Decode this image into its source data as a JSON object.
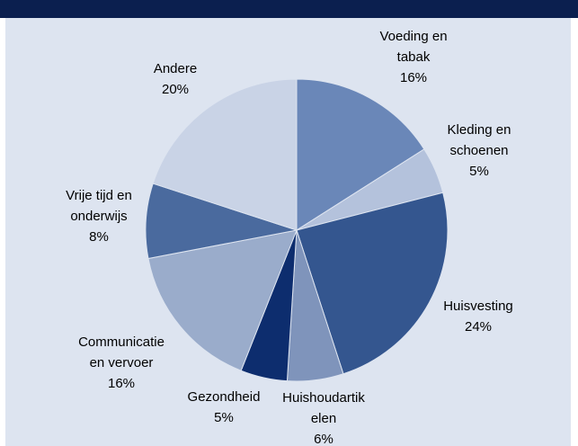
{
  "chart_data": {
    "type": "pie",
    "categories": [
      "Voeding en\ntabak",
      "Kleding en\nschoenen",
      "Huisvesting",
      "Huishoudartik\nelen",
      "Gezondheid",
      "Communicatie\nen vervoer",
      "Vrije tijd en\nonderwijs",
      "Andere"
    ],
    "values": [
      16,
      5,
      24,
      6,
      5,
      16,
      8,
      20
    ],
    "value_labels": [
      "16%",
      "5%",
      "24%",
      "6%",
      "5%",
      "16%",
      "8%",
      "20%"
    ],
    "colors": [
      "#6a87b8",
      "#b4c2dc",
      "#34568f",
      "#7f94bb",
      "#0d2d6e",
      "#9aaccb",
      "#4a6a9e",
      "#c9d3e6"
    ]
  }
}
